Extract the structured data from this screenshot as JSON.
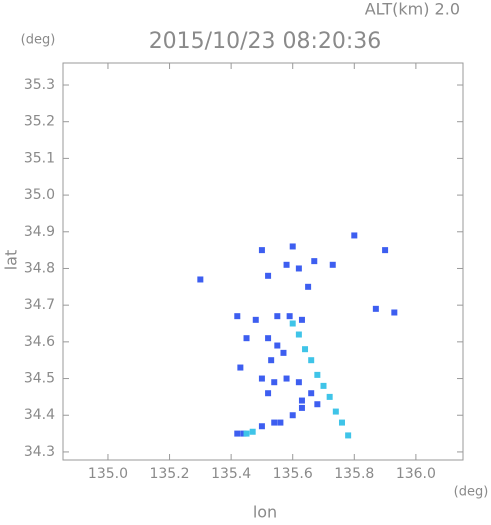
{
  "chart_data": {
    "type": "scatter",
    "title": "2015/10/23 08:20:36",
    "subtitle": "ALT(km)  2.0",
    "y_unit": "(deg)",
    "x_unit": "(deg)",
    "y_label": "lat",
    "x_label": "lon",
    "xlim": [
      134.854,
      136.153
    ],
    "ylim": [
      34.278,
      35.36
    ],
    "xticks": [
      {
        "value": 135.0,
        "label": "135.0"
      },
      135.2,
      135.4,
      135.6,
      135.8,
      {
        "value": 136.0,
        "label": "136.0"
      }
    ],
    "yticks": [
      34.3,
      34.4,
      34.5,
      34.6,
      34.7,
      34.8,
      34.9,
      {
        "value": 35.0,
        "label": "35.0"
      },
      35.1,
      35.2,
      35.3
    ],
    "series": [
      {
        "color": "#3d5ef0",
        "x": [
          135.3,
          135.5,
          135.6,
          135.8,
          135.9,
          135.58,
          135.62,
          135.67,
          135.52,
          135.65,
          135.73,
          135.87,
          135.93,
          135.42,
          135.48,
          135.55,
          135.59,
          135.63,
          135.45,
          135.52,
          135.55,
          135.43,
          135.53,
          135.57,
          135.5,
          135.54,
          135.58,
          135.62,
          135.52,
          135.63,
          135.66,
          135.63,
          135.68,
          135.42,
          135.44,
          135.5,
          135.54,
          135.56,
          135.6
        ],
        "values": [
          34.77,
          34.85,
          34.86,
          34.89,
          34.85,
          34.81,
          34.8,
          34.82,
          34.78,
          34.75,
          34.81,
          34.69,
          34.68,
          34.67,
          34.66,
          34.67,
          34.67,
          34.66,
          34.61,
          34.61,
          34.59,
          34.53,
          34.55,
          34.57,
          34.5,
          34.49,
          34.5,
          34.49,
          34.46,
          34.44,
          34.46,
          34.42,
          34.43,
          34.35,
          34.35,
          34.37,
          34.38,
          34.38,
          34.4
        ]
      },
      {
        "color": "#3fc4e8",
        "x": [
          135.6,
          135.62,
          135.64,
          135.66,
          135.68,
          135.7,
          135.72,
          135.74,
          135.76,
          135.78,
          135.45,
          135.47
        ],
        "values": [
          34.65,
          34.62,
          34.58,
          34.55,
          34.51,
          34.48,
          34.45,
          34.41,
          34.38,
          34.345,
          34.35,
          34.355
        ]
      }
    ]
  }
}
